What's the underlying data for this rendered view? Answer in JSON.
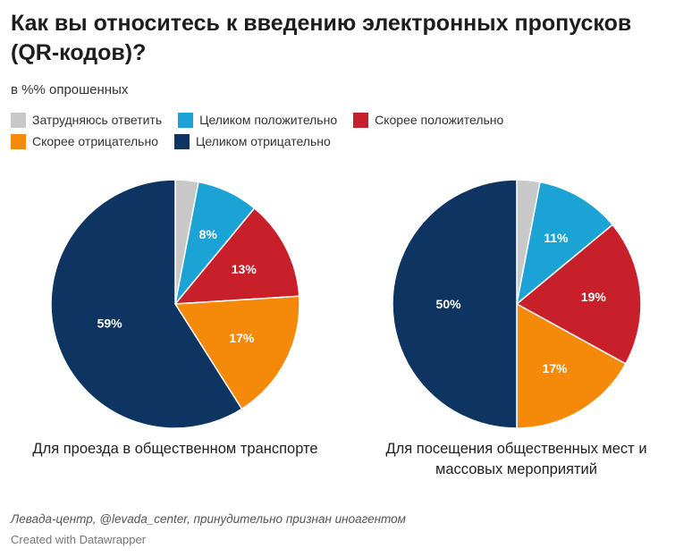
{
  "title": "Как вы относитесь к введению электронных пропусков (QR-кодов)?",
  "subtitle": "в %% опрошенных",
  "legend": [
    {
      "label": "Затрудняюсь ответить",
      "color": "#c8c8c8"
    },
    {
      "label": "Целиком положительно",
      "color": "#1aa3d4"
    },
    {
      "label": "Скорее положительно",
      "color": "#c8202a"
    },
    {
      "label": "Скорее отрицательно",
      "color": "#f58a0a"
    },
    {
      "label": "Целиком отрицательно",
      "color": "#0e3461"
    }
  ],
  "chart_data": [
    {
      "type": "pie",
      "caption": "Для проезда в общественном транспорте",
      "categories": [
        "Затрудняюсь ответить",
        "Целиком положительно",
        "Скорее положительно",
        "Скорее отрицательно",
        "Целиком отрицательно"
      ],
      "values": [
        3,
        8,
        13,
        17,
        59
      ],
      "labels": [
        "",
        "8%",
        "13%",
        "17%",
        "59%"
      ]
    },
    {
      "type": "pie",
      "caption": "Для посещения общественных мест и массовых мероприятий",
      "categories": [
        "Затрудняюсь ответить",
        "Целиком положительно",
        "Скорее положительно",
        "Скорее отрицательно",
        "Целиком отрицательно"
      ],
      "values": [
        3,
        11,
        19,
        17,
        50
      ],
      "labels": [
        "",
        "11%",
        "19%",
        "17%",
        "50%"
      ]
    }
  ],
  "source": "Левада-центр, @levada_center, принудительно признан иноагентом",
  "credit": "Created with Datawrapper"
}
